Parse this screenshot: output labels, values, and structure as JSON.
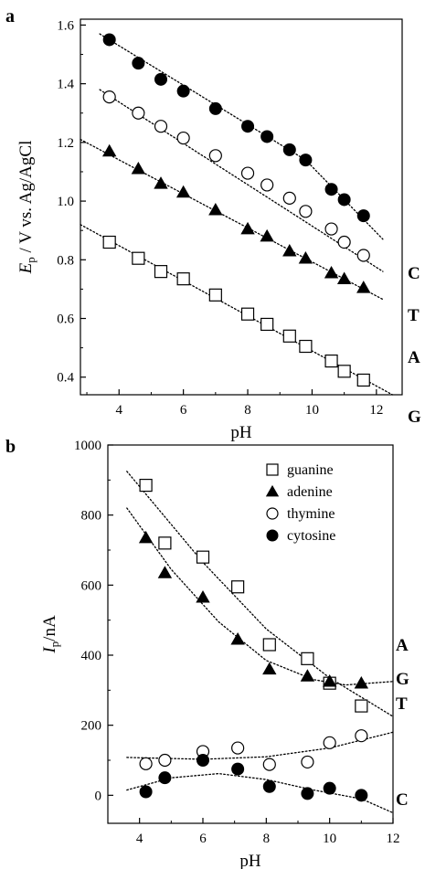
{
  "chart_data": [
    {
      "panel": "a",
      "type": "scatter",
      "xlabel": "pH",
      "ylabel": {
        "main": "E",
        "sub": "p",
        "rest": " / V vs. Ag/AgCl"
      },
      "xlim": [
        2.8,
        12.8
      ],
      "ylim": [
        0.34,
        1.62
      ],
      "xticks": [
        4,
        6,
        8,
        10,
        12
      ],
      "yticks": [
        0.4,
        0.6,
        0.8,
        1.0,
        1.2,
        1.4,
        1.6
      ],
      "ytick_labels": [
        "0.4",
        "0.6",
        "0.8",
        "1.0",
        "1.2",
        "1.4",
        "1.6"
      ],
      "grid": false,
      "series": [
        {
          "label": "C",
          "marker": "filled-circle",
          "x": [
            3.7,
            4.6,
            5.3,
            6.0,
            7.0,
            8.0,
            8.6,
            9.3,
            9.8,
            10.6,
            11.0,
            11.6
          ],
          "y": [
            1.55,
            1.47,
            1.415,
            1.375,
            1.315,
            1.255,
            1.22,
            1.175,
            1.14,
            1.04,
            1.005,
            0.95
          ],
          "fit": [
            [
              3.4,
              1.57
            ],
            [
              9.8,
              1.14
            ],
            [
              12.2,
              0.87
            ]
          ]
        },
        {
          "label": "T",
          "marker": "open-circle",
          "x": [
            3.7,
            4.6,
            5.3,
            6.0,
            7.0,
            8.0,
            8.6,
            9.3,
            9.8,
            10.6,
            11.0,
            11.6
          ],
          "y": [
            1.355,
            1.3,
            1.255,
            1.215,
            1.155,
            1.095,
            1.055,
            1.01,
            0.965,
            0.905,
            0.86,
            0.815
          ],
          "fit": [
            [
              3.4,
              1.38
            ],
            [
              12.2,
              0.76
            ]
          ]
        },
        {
          "label": "A",
          "marker": "filled-triangle",
          "x": [
            3.7,
            4.6,
            5.3,
            6.0,
            7.0,
            8.0,
            8.6,
            9.3,
            9.8,
            10.6,
            11.0,
            11.6
          ],
          "y": [
            1.17,
            1.11,
            1.06,
            1.03,
            0.97,
            0.905,
            0.88,
            0.83,
            0.805,
            0.755,
            0.735,
            0.705
          ],
          "fit": [
            [
              2.8,
              1.21
            ],
            [
              12.2,
              0.665
            ]
          ]
        },
        {
          "label": "G",
          "marker": "open-square",
          "x": [
            3.7,
            4.6,
            5.3,
            6.0,
            7.0,
            8.0,
            8.6,
            9.3,
            9.8,
            10.6,
            11.0,
            11.6
          ],
          "y": [
            0.86,
            0.805,
            0.76,
            0.735,
            0.68,
            0.615,
            0.58,
            0.54,
            0.505,
            0.455,
            0.42,
            0.39
          ],
          "fit": [
            [
              2.8,
              0.92
            ],
            [
              12.5,
              0.34
            ]
          ]
        }
      ]
    },
    {
      "panel": "b",
      "type": "scatter",
      "xlabel": "pH",
      "ylabel": {
        "main": "I",
        "sub": "p",
        "rest": "/nA"
      },
      "xlim": [
        3,
        12
      ],
      "ylim": [
        -80,
        1000
      ],
      "xticks": [
        4,
        6,
        8,
        10,
        12
      ],
      "yticks": [
        0,
        200,
        400,
        600,
        800,
        1000
      ],
      "ytick_labels": [
        "0",
        "200",
        "400",
        "600",
        "800",
        "1000"
      ],
      "grid": false,
      "legend_position": "top-right",
      "series": [
        {
          "name": "guanine",
          "label": "G",
          "marker": "open-square",
          "x": [
            4.2,
            4.8,
            6.0,
            7.1,
            8.1,
            9.3,
            10.0,
            11.0
          ],
          "y": [
            885,
            720,
            680,
            595,
            430,
            390,
            320,
            255
          ],
          "fit": [
            [
              3.6,
              925
            ],
            [
              6.0,
              665
            ],
            [
              8.0,
              475
            ],
            [
              10.0,
              335
            ],
            [
              12.0,
              225
            ]
          ]
        },
        {
          "name": "adenine",
          "label": "A",
          "marker": "filled-triangle",
          "x": [
            4.2,
            4.8,
            6.0,
            7.1,
            8.1,
            9.3,
            10.0,
            11.0
          ],
          "y": [
            735,
            635,
            565,
            445,
            360,
            340,
            325,
            320
          ],
          "fit": [
            [
              3.6,
              820
            ],
            [
              5.0,
              645
            ],
            [
              6.5,
              495
            ],
            [
              8.0,
              385
            ],
            [
              9.5,
              330
            ],
            [
              10.5,
              315
            ],
            [
              12.0,
              325
            ]
          ]
        },
        {
          "name": "thymine",
          "label": "T",
          "marker": "open-circle",
          "x": [
            4.2,
            4.8,
            6.0,
            7.1,
            8.1,
            9.3,
            10.0,
            11.0
          ],
          "y": [
            90,
            100,
            125,
            135,
            88,
            95,
            150,
            170
          ],
          "fit": [
            [
              3.6,
              108
            ],
            [
              6.0,
              103
            ],
            [
              8.0,
              110
            ],
            [
              10.0,
              135
            ],
            [
              12.0,
              180
            ]
          ]
        },
        {
          "name": "cytosine",
          "label": "C",
          "marker": "filled-circle",
          "x": [
            4.2,
            4.8,
            6.0,
            7.1,
            8.1,
            9.3,
            10.0,
            11.0
          ],
          "y": [
            10,
            50,
            100,
            75,
            25,
            5,
            20,
            0
          ],
          "fit": [
            [
              3.6,
              15
            ],
            [
              5.0,
              50
            ],
            [
              6.5,
              62
            ],
            [
              8.0,
              45
            ],
            [
              9.5,
              15
            ],
            [
              11.0,
              -10
            ],
            [
              12.0,
              -50
            ]
          ]
        }
      ]
    }
  ]
}
